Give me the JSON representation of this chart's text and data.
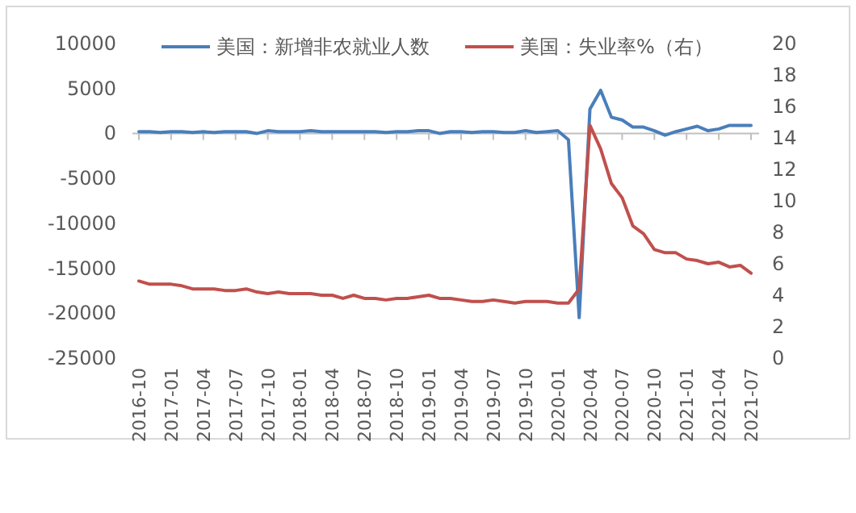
{
  "chart_data": {
    "type": "line",
    "legend": "top",
    "categories": [
      "2016-10",
      null,
      null,
      "2017-01",
      null,
      null,
      "2017-04",
      null,
      null,
      "2017-07",
      null,
      null,
      "2017-10",
      null,
      null,
      "2018-01",
      null,
      null,
      "2018-04",
      null,
      null,
      "2018-07",
      null,
      null,
      "2018-10",
      null,
      null,
      "2019-01",
      null,
      null,
      "2019-04",
      null,
      null,
      "2019-07",
      null,
      null,
      "2019-10",
      null,
      null,
      "2020-01",
      null,
      null,
      "2020-04",
      null,
      null,
      "2020-07",
      null,
      null,
      "2020-10",
      null,
      null,
      "2021-01",
      null,
      null,
      "2021-04",
      null,
      null,
      "2021-07"
    ],
    "series": [
      {
        "name": "美国：新增非农就业人数",
        "color": "#4a7ebb",
        "values": [
          200,
          200,
          100,
          200,
          200,
          100,
          200,
          100,
          200,
          200,
          200,
          0,
          300,
          200,
          200,
          200,
          300,
          200,
          200,
          200,
          200,
          200,
          200,
          100,
          200,
          200,
          300,
          300,
          0,
          200,
          200,
          100,
          200,
          200,
          100,
          100,
          300,
          100,
          200,
          300,
          -700,
          -20500,
          2700,
          4800,
          1800,
          1500,
          700,
          700,
          300,
          -200,
          200,
          500,
          800,
          300,
          500,
          900,
          900,
          900
        ]
      },
      {
        "name": "美国：失业率%（右）",
        "color": "#c0504d",
        "axis": "y2",
        "values": [
          4.9,
          4.7,
          4.7,
          4.7,
          4.6,
          4.4,
          4.4,
          4.4,
          4.3,
          4.3,
          4.4,
          4.2,
          4.1,
          4.2,
          4.1,
          4.1,
          4.1,
          4.0,
          4.0,
          3.8,
          4.0,
          3.8,
          3.8,
          3.7,
          3.8,
          3.8,
          3.9,
          4.0,
          3.8,
          3.8,
          3.7,
          3.6,
          3.6,
          3.7,
          3.6,
          3.5,
          3.6,
          3.6,
          3.6,
          3.5,
          3.5,
          4.4,
          14.8,
          13.3,
          11.1,
          10.2,
          8.4,
          7.9,
          6.9,
          6.7,
          6.7,
          6.3,
          6.2,
          6.0,
          6.1,
          5.8,
          5.9,
          5.4
        ]
      }
    ],
    "ylim": [
      -25000,
      10000
    ],
    "yticks": [
      -25000,
      -20000,
      -15000,
      -10000,
      -5000,
      0,
      5000,
      10000
    ],
    "y2lim": [
      0,
      20
    ],
    "y2ticks": [
      0,
      2,
      4,
      6,
      8,
      10,
      12,
      14,
      16,
      18,
      20
    ]
  }
}
